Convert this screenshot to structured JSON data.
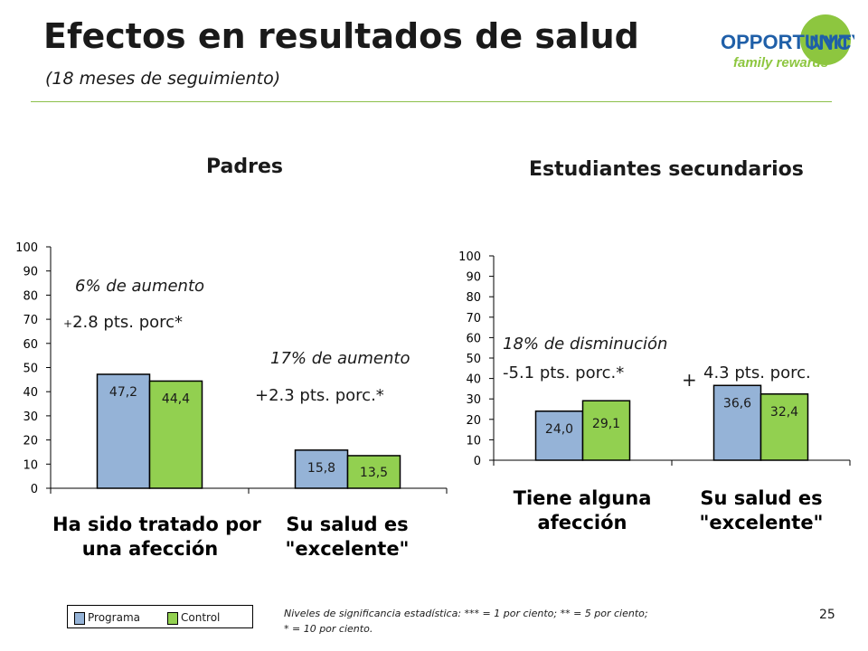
{
  "header": {
    "title": "Efectos en resultados de salud",
    "subtitle": "(18 meses de seguimiento)"
  },
  "logo": {
    "opportunity": "OPPORTUNITY",
    "nyc": "NYC",
    "tagline": "family rewards"
  },
  "colors": {
    "programa": "#95b3d7",
    "control": "#92d050",
    "rule": "#8cc04b",
    "logo_blue": "#1f5fa8",
    "logo_green": "#8dc63f"
  },
  "chart_data": [
    {
      "type": "bar",
      "title": "Padres",
      "categories": [
        "Ha sido tratado por una afección",
        "Su salud es \"excelente\""
      ],
      "category_lines": [
        [
          "Ha sido tratado por",
          "una afección"
        ],
        [
          "Su salud es",
          "\"excelente\""
        ]
      ],
      "series": [
        {
          "name": "Programa",
          "values": [
            47.2,
            15.8
          ],
          "labels": [
            "47,2",
            "15,8"
          ]
        },
        {
          "name": "Control",
          "values": [
            44.4,
            13.5
          ],
          "labels": [
            "44,4",
            "13,5"
          ]
        }
      ],
      "ylim": [
        0,
        100
      ],
      "yticks": [
        0,
        10,
        20,
        30,
        40,
        50,
        60,
        70,
        80,
        90,
        100
      ],
      "annotations": [
        {
          "text": "6% de aumento",
          "style": "italic"
        },
        {
          "text": "2.8 pts. porc*",
          "prefix": "+"
        },
        {
          "text": "17% de aumento",
          "style": "italic"
        },
        {
          "text": "+2.3 pts. porc.*"
        }
      ]
    },
    {
      "type": "bar",
      "title": "Estudiantes secundarios",
      "categories": [
        "Tiene alguna afección",
        "Su salud es \"excelente\""
      ],
      "category_lines": [
        [
          "Tiene alguna",
          "afección"
        ],
        [
          "Su salud es",
          "\"excelente\""
        ]
      ],
      "series": [
        {
          "name": "Programa",
          "values": [
            24.0,
            36.6
          ],
          "labels": [
            "24,0",
            "36,6"
          ]
        },
        {
          "name": "Control",
          "values": [
            29.1,
            32.4
          ],
          "labels": [
            "29,1",
            "32,4"
          ]
        }
      ],
      "ylim": [
        0,
        100
      ],
      "yticks": [
        0,
        10,
        20,
        30,
        40,
        50,
        60,
        70,
        80,
        90,
        100
      ],
      "annotations": [
        {
          "text": "18% de disminución",
          "style": "italic"
        },
        {
          "text": "-5.1 pts. porc.*"
        },
        {
          "text": "+"
        },
        {
          "text": "4.3 pts. porc."
        }
      ]
    }
  ],
  "legend": {
    "programa": "Programa",
    "control": "Control"
  },
  "footnote": {
    "line1": "Niveles de significancia estadística: *** = 1 por ciento; ** = 5 por ciento;",
    "line2": "* = 10 por ciento."
  },
  "page_number": "25"
}
